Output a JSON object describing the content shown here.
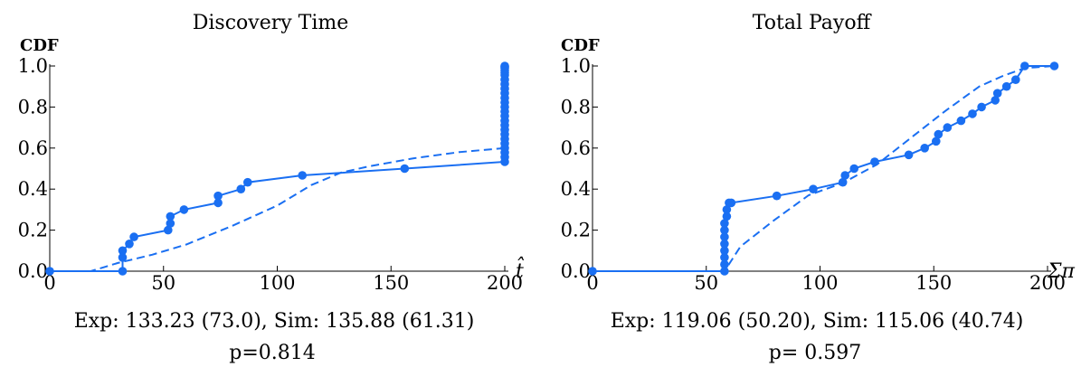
{
  "colors": {
    "series": "#1a6ff2",
    "axis": "#000000"
  },
  "chart_data": [
    {
      "type": "line",
      "title": "Discovery Time",
      "ylabel": "CDF",
      "xlabel": "t̂",
      "xlim": [
        0,
        200
      ],
      "ylim": [
        0,
        1
      ],
      "xticks": [
        "0",
        "50",
        "100",
        "150",
        "200"
      ],
      "yticks": [
        "0.0",
        "0.2",
        "0.4",
        "0.6",
        "0.8",
        "1.0"
      ],
      "caption_line1": "Exp: 133.23 (73.0), Sim: 135.88 (61.31)",
      "caption_line2": "p=0.814",
      "series": [
        {
          "style": "solid-markers",
          "x": [
            0,
            32,
            32,
            32,
            35,
            37,
            52,
            53,
            53,
            59,
            74,
            74,
            84,
            87,
            111,
            156,
            200,
            200,
            200,
            200,
            200,
            200,
            200,
            200,
            200,
            200,
            200,
            200,
            200,
            200,
            200,
            200,
            200,
            200,
            200,
            200,
            200,
            200,
            200,
            200,
            200
          ],
          "y": [
            0.0,
            0.0,
            0.067,
            0.1,
            0.133,
            0.167,
            0.2,
            0.233,
            0.267,
            0.3,
            0.333,
            0.367,
            0.4,
            0.433,
            0.467,
            0.5,
            0.533,
            0.556,
            0.578,
            0.6,
            0.622,
            0.644,
            0.667,
            0.689,
            0.711,
            0.733,
            0.756,
            0.778,
            0.8,
            0.822,
            0.844,
            0.867,
            0.889,
            0.911,
            0.933,
            0.956,
            0.967,
            0.978,
            0.989,
            0.995,
            1.0
          ]
        },
        {
          "style": "dashed",
          "x": [
            0,
            18,
            30,
            45,
            60,
            80,
            100,
            115,
            128,
            140,
            160,
            180,
            200
          ],
          "y": [
            0.0,
            0.0,
            0.04,
            0.08,
            0.13,
            0.22,
            0.32,
            0.42,
            0.48,
            0.51,
            0.55,
            0.58,
            0.6
          ]
        }
      ]
    },
    {
      "type": "line",
      "title": "Total Payoff",
      "ylabel": "CDF",
      "xlabel": "Σπ",
      "xlim": [
        0,
        200
      ],
      "ylim": [
        0,
        1
      ],
      "xticks": [
        "0",
        "50",
        "100",
        "150",
        "200"
      ],
      "yticks": [
        "0.0",
        "0.2",
        "0.4",
        "0.6",
        "0.8",
        "1.0"
      ],
      "caption_line1": "Exp: 119.06 (50.20), Sim: 115.06 (40.74)",
      "caption_line2": "p= 0.597",
      "series": [
        {
          "style": "solid-markers",
          "x": [
            0,
            58,
            58,
            58,
            58,
            58,
            58,
            58,
            58,
            59,
            59,
            60,
            61,
            81,
            97,
            110,
            111,
            115,
            124,
            139,
            146,
            151,
            152,
            156,
            162,
            167,
            171,
            177,
            178,
            182,
            186,
            190,
            203
          ],
          "y": [
            0.0,
            0.0,
            0.033,
            0.067,
            0.1,
            0.133,
            0.167,
            0.2,
            0.233,
            0.267,
            0.3,
            0.333,
            0.333,
            0.367,
            0.4,
            0.433,
            0.467,
            0.5,
            0.533,
            0.567,
            0.6,
            0.633,
            0.667,
            0.7,
            0.733,
            0.767,
            0.8,
            0.833,
            0.867,
            0.9,
            0.933,
            1.0,
            1.0
          ]
        },
        {
          "style": "dashed",
          "x": [
            0,
            58,
            65,
            80,
            95,
            110,
            125,
            140,
            155,
            170,
            180,
            190,
            203
          ],
          "y": [
            0.0,
            0.0,
            0.12,
            0.25,
            0.37,
            0.43,
            0.52,
            0.65,
            0.78,
            0.9,
            0.95,
            0.99,
            1.0
          ]
        }
      ]
    }
  ]
}
